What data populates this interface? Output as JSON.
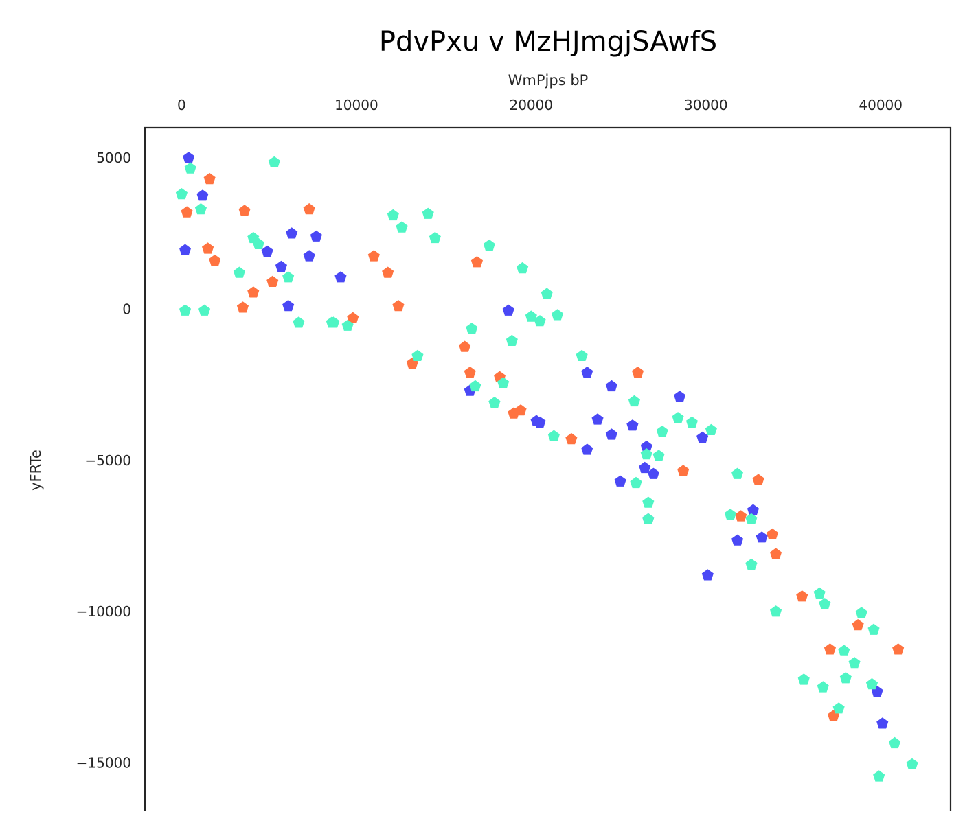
{
  "chart_data": {
    "type": "scatter",
    "title": "PdvPxu v  MzHJmgjSAwfS",
    "xlabel": "WmPjps bP",
    "ylabel": "yFRTe",
    "x_axis_position": "top",
    "xlim": [
      -2100,
      44000
    ],
    "ylim": [
      -16600,
      6000
    ],
    "xticks": [
      0,
      10000,
      20000,
      30000,
      40000
    ],
    "xtick_labels": [
      "0",
      "10000",
      "20000",
      "30000",
      "40000"
    ],
    "yticks": [
      5000,
      0,
      -5000,
      -10000,
      -15000
    ],
    "ytick_labels": [
      "5000",
      "0",
      "−5000",
      "−10000",
      "−15000"
    ],
    "grid": false,
    "legend": "none",
    "marker": "pentagon",
    "series": [
      {
        "color": "#4a48f5",
        "points": [
          [
            400,
            5000
          ],
          [
            200,
            1950
          ],
          [
            1200,
            3750
          ],
          [
            4900,
            1900
          ],
          [
            5700,
            1400
          ],
          [
            6300,
            2500
          ],
          [
            6100,
            100
          ],
          [
            7300,
            1750
          ],
          [
            7700,
            2400
          ],
          [
            9100,
            1050
          ],
          [
            18700,
            -50
          ],
          [
            16500,
            -2700
          ],
          [
            20300,
            -3700
          ],
          [
            20500,
            -3750
          ],
          [
            23200,
            -2100
          ],
          [
            23200,
            -4650
          ],
          [
            23800,
            -3650
          ],
          [
            24600,
            -2550
          ],
          [
            24600,
            -4150
          ],
          [
            25100,
            -5700
          ],
          [
            25800,
            -3850
          ],
          [
            26600,
            -4550
          ],
          [
            26500,
            -5250
          ],
          [
            27000,
            -5450
          ],
          [
            26700,
            -6950
          ],
          [
            28500,
            -2900
          ],
          [
            29800,
            -4250
          ],
          [
            30100,
            -8800
          ],
          [
            31800,
            -7650
          ],
          [
            32700,
            -6650
          ],
          [
            33200,
            -7550
          ],
          [
            39800,
            -12650
          ],
          [
            40100,
            -13700
          ]
        ]
      },
      {
        "color": "#ff7340",
        "points": [
          [
            300,
            3200
          ],
          [
            1600,
            4300
          ],
          [
            1500,
            2000
          ],
          [
            1900,
            1600
          ],
          [
            3600,
            3250
          ],
          [
            3500,
            50
          ],
          [
            4100,
            550
          ],
          [
            5200,
            900
          ],
          [
            7300,
            3300
          ],
          [
            9800,
            -300
          ],
          [
            11000,
            1750
          ],
          [
            11800,
            1200
          ],
          [
            12400,
            100
          ],
          [
            13200,
            -1800
          ],
          [
            16200,
            -1250
          ],
          [
            16500,
            -2100
          ],
          [
            16900,
            1550
          ],
          [
            18200,
            -2250
          ],
          [
            19000,
            -3450
          ],
          [
            19400,
            -3350
          ],
          [
            22300,
            -4300
          ],
          [
            26100,
            -2100
          ],
          [
            28700,
            -5350
          ],
          [
            32000,
            -6850
          ],
          [
            33000,
            -5650
          ],
          [
            33800,
            -7450
          ],
          [
            34000,
            -8100
          ],
          [
            35500,
            -9500
          ],
          [
            37100,
            -11250
          ],
          [
            37300,
            -13450
          ],
          [
            38700,
            -10450
          ],
          [
            41000,
            -11250
          ]
        ]
      },
      {
        "color": "#4ff5c4",
        "points": [
          [
            0,
            3800
          ],
          [
            500,
            4650
          ],
          [
            200,
            -50
          ],
          [
            1100,
            3300
          ],
          [
            1300,
            -50
          ],
          [
            5300,
            4850
          ],
          [
            3300,
            1200
          ],
          [
            4100,
            2350
          ],
          [
            4400,
            2150
          ],
          [
            6100,
            1050
          ],
          [
            6700,
            -450
          ],
          [
            8600,
            -450
          ],
          [
            8700,
            -450
          ],
          [
            9500,
            -550
          ],
          [
            12100,
            3100
          ],
          [
            12600,
            2700
          ],
          [
            13500,
            -1550
          ],
          [
            14100,
            3150
          ],
          [
            14500,
            2350
          ],
          [
            16600,
            -650
          ],
          [
            16800,
            -2550
          ],
          [
            17600,
            2100
          ],
          [
            17900,
            -3100
          ],
          [
            18400,
            -2450
          ],
          [
            18900,
            -1050
          ],
          [
            19500,
            1350
          ],
          [
            20000,
            -250
          ],
          [
            20500,
            -400
          ],
          [
            20900,
            500
          ],
          [
            21300,
            -4200
          ],
          [
            21500,
            -200
          ],
          [
            22900,
            -1550
          ],
          [
            25900,
            -3050
          ],
          [
            26000,
            -5750
          ],
          [
            26600,
            -4800
          ],
          [
            26700,
            -6400
          ],
          [
            26700,
            -6950
          ],
          [
            27300,
            -4850
          ],
          [
            27500,
            -4050
          ],
          [
            28400,
            -3600
          ],
          [
            29200,
            -3750
          ],
          [
            30300,
            -4000
          ],
          [
            31400,
            -6800
          ],
          [
            31800,
            -5450
          ],
          [
            32600,
            -6950
          ],
          [
            32600,
            -8450
          ],
          [
            34000,
            -10000
          ],
          [
            35600,
            -12250
          ],
          [
            36500,
            -9400
          ],
          [
            36700,
            -12500
          ],
          [
            36800,
            -9750
          ],
          [
            37600,
            -13200
          ],
          [
            37900,
            -11300
          ],
          [
            38000,
            -12200
          ],
          [
            38500,
            -11700
          ],
          [
            38900,
            -10050
          ],
          [
            39500,
            -12400
          ],
          [
            39600,
            -10600
          ],
          [
            39900,
            -15450
          ],
          [
            40800,
            -14350
          ],
          [
            41800,
            -15050
          ]
        ]
      }
    ]
  }
}
